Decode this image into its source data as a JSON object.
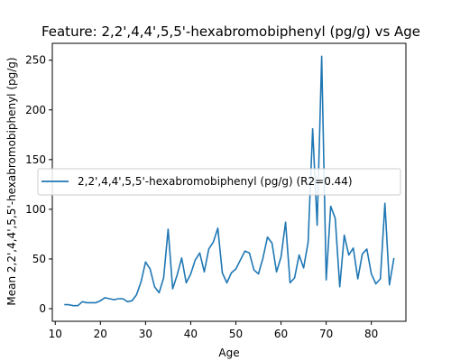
{
  "chart_data": {
    "type": "line",
    "title": "Feature: 2,2',4,4',5,5'-hexabromobiphenyl (pg/g) vs Age",
    "xlabel": "Age",
    "ylabel": "Mean 2,2',4,4',5,5'-hexabromobiphenyl (pg/g)",
    "xlim": [
      9.35,
      87.65
    ],
    "ylim": [
      -12.7,
      267
    ],
    "xticks": [
      10,
      20,
      30,
      40,
      50,
      60,
      70,
      80
    ],
    "yticks": [
      0,
      50,
      100,
      150,
      200,
      250
    ],
    "grid": false,
    "legend_position": "center-left",
    "series": [
      {
        "name": "2,2',4,4',5,5'-hexabromobiphenyl (pg/g) (R2=0.44)",
        "color": "#1f77b4",
        "x": [
          12,
          13,
          14,
          15,
          16,
          17,
          18,
          19,
          20,
          21,
          22,
          23,
          24,
          25,
          26,
          27,
          28,
          29,
          30,
          31,
          32,
          33,
          34,
          35,
          36,
          37,
          38,
          39,
          40,
          41,
          42,
          43,
          44,
          45,
          46,
          47,
          48,
          49,
          50,
          51,
          52,
          53,
          54,
          55,
          56,
          57,
          58,
          59,
          60,
          61,
          62,
          63,
          64,
          65,
          66,
          67,
          68,
          69,
          70,
          71,
          72,
          73,
          74,
          75,
          76,
          77,
          78,
          79,
          80,
          81,
          82,
          83,
          84,
          85
        ],
        "y": [
          4,
          4,
          3,
          3,
          7,
          6,
          6,
          6,
          8,
          11,
          10,
          9,
          10,
          10,
          7,
          8,
          14,
          27,
          47,
          40,
          22,
          16,
          31,
          80,
          20,
          34,
          51,
          26,
          35,
          49,
          56,
          37,
          60,
          67,
          81,
          36,
          26,
          36,
          40,
          49,
          58,
          56,
          39,
          35,
          51,
          72,
          66,
          37,
          52,
          87,
          26,
          31,
          54,
          41,
          67,
          181,
          84,
          254,
          29,
          103,
          91,
          22,
          74,
          54,
          61,
          30,
          55,
          60,
          35,
          25,
          30,
          106,
          24,
          51
        ]
      }
    ]
  }
}
